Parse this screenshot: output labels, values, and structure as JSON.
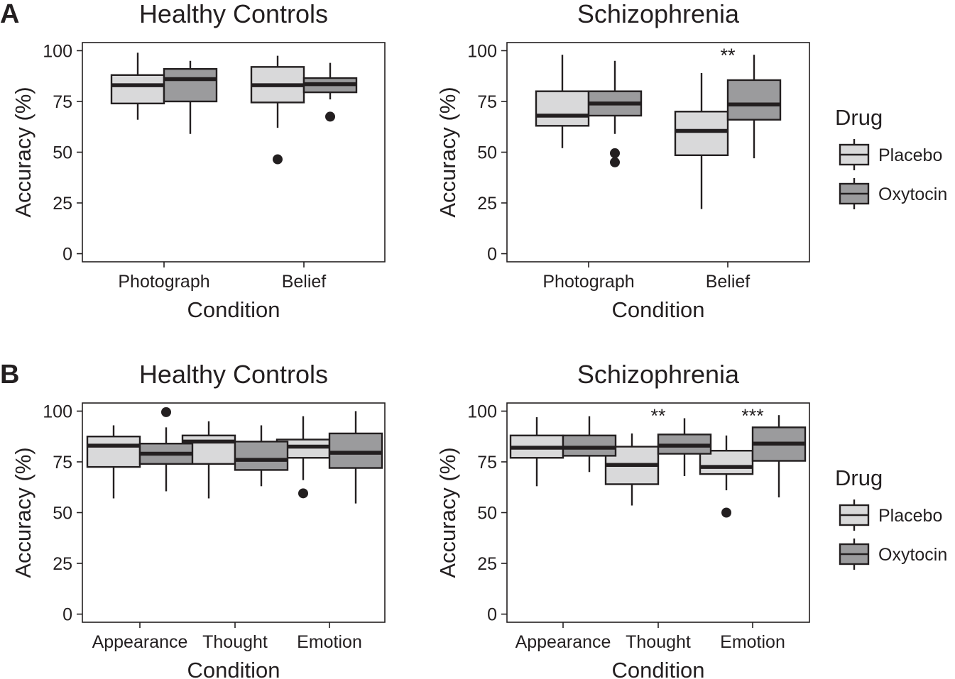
{
  "colors": {
    "ink": "#231f20",
    "placebo_fill": "#d9d9da",
    "oxytocin_fill": "#9b9b9d",
    "background": "#ffffff"
  },
  "rows": [
    {
      "label": "A"
    },
    {
      "label": "B"
    }
  ],
  "legend": {
    "title": "Drug",
    "items": [
      {
        "label": "Placebo",
        "color": "#d9d9da"
      },
      {
        "label": "Oxytocin",
        "color": "#9b9b9d"
      }
    ]
  },
  "chart_data": [
    {
      "type": "box",
      "row": "A",
      "title": "Healthy Controls",
      "xlabel": "Condition",
      "ylabel": "Accuracy (%)",
      "ylim": [
        -4,
        104
      ],
      "yticks": [
        "0",
        "25",
        "50",
        "75",
        "100"
      ],
      "categories": [
        "Photograph",
        "Belief"
      ],
      "series": [
        {
          "name": "Placebo",
          "boxes": [
            {
              "min": 66,
              "q1": 74,
              "median": 83,
              "q3": 88,
              "max": 99,
              "outliers": []
            },
            {
              "min": 62,
              "q1": 74.5,
              "median": 83,
              "q3": 92,
              "max": 97.5,
              "outliers": [
                46.5
              ]
            }
          ]
        },
        {
          "name": "Oxytocin",
          "boxes": [
            {
              "min": 59,
              "q1": 75,
              "median": 86,
              "q3": 91,
              "max": 95,
              "outliers": []
            },
            {
              "min": 76,
              "q1": 79.5,
              "median": 83.5,
              "q3": 86.5,
              "max": 94,
              "outliers": [
                67.5
              ]
            }
          ]
        }
      ],
      "annotations": []
    },
    {
      "type": "box",
      "row": "A",
      "title": "Schizophrenia",
      "xlabel": "Condition",
      "ylabel": "Accuracy (%)",
      "ylim": [
        -4,
        104
      ],
      "yticks": [
        "0",
        "25",
        "50",
        "75",
        "100"
      ],
      "categories": [
        "Photograph",
        "Belief"
      ],
      "series": [
        {
          "name": "Placebo",
          "boxes": [
            {
              "min": 52,
              "q1": 63,
              "median": 68,
              "q3": 80,
              "max": 98,
              "outliers": []
            },
            {
              "min": 22,
              "q1": 48.5,
              "median": 60.5,
              "q3": 70,
              "max": 89,
              "outliers": []
            }
          ]
        },
        {
          "name": "Oxytocin",
          "boxes": [
            {
              "min": 59,
              "q1": 68,
              "median": 74,
              "q3": 80,
              "max": 95,
              "outliers": [
                49.5,
                45
              ]
            },
            {
              "min": 47,
              "q1": 66,
              "median": 73.5,
              "q3": 85.5,
              "max": 98,
              "outliers": []
            }
          ]
        }
      ],
      "annotations": [
        {
          "category": "Belief",
          "text": "**",
          "y": 98
        }
      ]
    },
    {
      "type": "box",
      "row": "B",
      "title": "Healthy Controls",
      "xlabel": "Condition",
      "ylabel": "Accuracy (%)",
      "ylim": [
        -4,
        104
      ],
      "yticks": [
        "0",
        "25",
        "50",
        "75",
        "100"
      ],
      "categories": [
        "Appearance",
        "Thought",
        "Emotion"
      ],
      "series": [
        {
          "name": "Placebo",
          "boxes": [
            {
              "min": 57,
              "q1": 72.5,
              "median": 83,
              "q3": 87.5,
              "max": 93,
              "outliers": []
            },
            {
              "min": 57,
              "q1": 74,
              "median": 85,
              "q3": 88,
              "max": 95,
              "outliers": []
            },
            {
              "min": 66,
              "q1": 77,
              "median": 82.5,
              "q3": 86,
              "max": 97.5,
              "outliers": [
                59.5
              ]
            }
          ]
        },
        {
          "name": "Oxytocin",
          "boxes": [
            {
              "min": 60.5,
              "q1": 74,
              "median": 79,
              "q3": 84,
              "max": 92,
              "outliers": [
                99.5
              ]
            },
            {
              "min": 63,
              "q1": 71,
              "median": 76,
              "q3": 85,
              "max": 93,
              "outliers": []
            },
            {
              "min": 54.5,
              "q1": 72,
              "median": 79.5,
              "q3": 89,
              "max": 100,
              "outliers": []
            }
          ]
        }
      ],
      "annotations": []
    },
    {
      "type": "box",
      "row": "B",
      "title": "Schizophrenia",
      "xlabel": "Condition",
      "ylabel": "Accuracy (%)",
      "ylim": [
        -4,
        104
      ],
      "yticks": [
        "0",
        "25",
        "50",
        "75",
        "100"
      ],
      "categories": [
        "Appearance",
        "Thought",
        "Emotion"
      ],
      "series": [
        {
          "name": "Placebo",
          "boxes": [
            {
              "min": 63,
              "q1": 77,
              "median": 82,
              "q3": 88,
              "max": 97,
              "outliers": []
            },
            {
              "min": 53.5,
              "q1": 64,
              "median": 73.5,
              "q3": 82.5,
              "max": 89,
              "outliers": []
            },
            {
              "min": 61,
              "q1": 69,
              "median": 72.5,
              "q3": 80.5,
              "max": 88,
              "outliers": [
                50
              ]
            }
          ]
        },
        {
          "name": "Oxytocin",
          "boxes": [
            {
              "min": 70,
              "q1": 78,
              "median": 82,
              "q3": 88,
              "max": 97.5,
              "outliers": []
            },
            {
              "min": 68,
              "q1": 79,
              "median": 83,
              "q3": 88.5,
              "max": 96.5,
              "outliers": []
            },
            {
              "min": 57.5,
              "q1": 75.5,
              "median": 84,
              "q3": 92,
              "max": 98,
              "outliers": []
            }
          ]
        }
      ],
      "annotations": [
        {
          "category": "Thought",
          "text": "**",
          "y": 98
        },
        {
          "category": "Emotion",
          "text": "***",
          "y": 98
        }
      ]
    }
  ]
}
